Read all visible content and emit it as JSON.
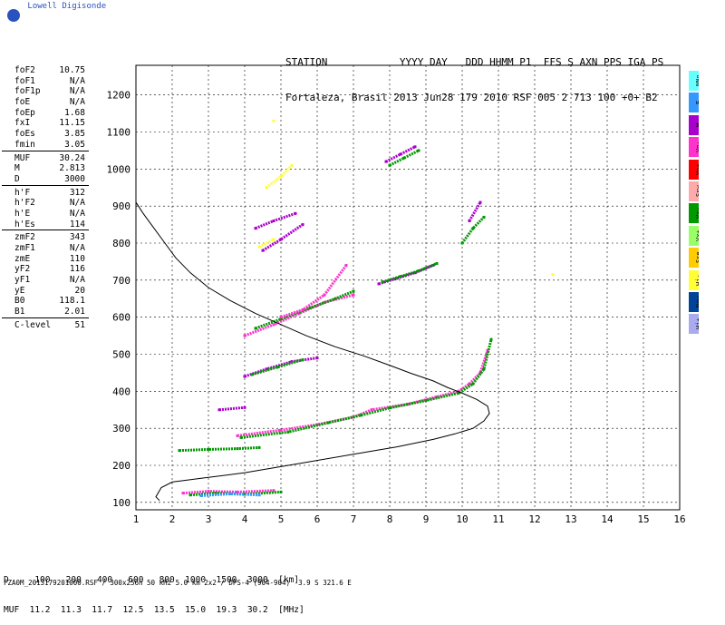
{
  "logo": {
    "text": "Lowell Digisonde"
  },
  "header": {
    "line1": "STATION            YYYY DAY   DDD HHMM P1  FFS S AXN PPS IGA PS",
    "line2": "Fortaleza, Brasil 2013 Jun28 179 2010 RSF 005 2 713 100 +0+ B2"
  },
  "params": [
    {
      "k": "foF2",
      "v": "10.75"
    },
    {
      "k": "foF1",
      "v": "N/A"
    },
    {
      "k": "foF1p",
      "v": "N/A"
    },
    {
      "k": "foE",
      "v": "N/A"
    },
    {
      "k": "foEp",
      "v": "1.68"
    },
    {
      "k": "fxI",
      "v": "11.15"
    },
    {
      "k": "foEs",
      "v": "3.85"
    },
    {
      "k": "fmin",
      "v": "3.05",
      "sep": true
    },
    {
      "k": "MUF",
      "v": "30.24"
    },
    {
      "k": "M",
      "v": "2.813"
    },
    {
      "k": "D",
      "v": "3000",
      "sep": true
    },
    {
      "k": "h'F",
      "v": "312"
    },
    {
      "k": "h'F2",
      "v": "N/A"
    },
    {
      "k": "h'E",
      "v": "N/A"
    },
    {
      "k": "h'Es",
      "v": "114",
      "sep": true
    },
    {
      "k": "zmF2",
      "v": "343"
    },
    {
      "k": "zmF1",
      "v": "N/A"
    },
    {
      "k": "zmE",
      "v": "110"
    },
    {
      "k": "yF2",
      "v": "116"
    },
    {
      "k": "yF1",
      "v": "N/A"
    },
    {
      "k": "yE",
      "v": "20"
    },
    {
      "k": "B0",
      "v": "118.1"
    },
    {
      "k": "B1",
      "v": "2.01",
      "sep": true
    },
    {
      "k": "C-level",
      "v": "51"
    }
  ],
  "legend": [
    {
      "label": "NNo",
      "color": "#66ffff"
    },
    {
      "label": "E",
      "color": "#3399ff"
    },
    {
      "label": "W",
      "color": "#aa00cc"
    },
    {
      "label": "Vo-",
      "color": "#ff33cc"
    },
    {
      "label": "Vo+",
      "color": "#ff0000"
    },
    {
      "label": "Ssw",
      "color": "#ffaaaa"
    },
    {
      "label": "Vx-",
      "color": "#009900"
    },
    {
      "label": "Vx+",
      "color": "#99ff66"
    },
    {
      "label": "Sse",
      "color": "#ffcc00"
    },
    {
      "label": "Hi-",
      "color": "#ffff33"
    },
    {
      "label": "Nnw",
      "color": "#004499"
    },
    {
      "label": "Hi+",
      "color": "#aaaaee"
    }
  ],
  "muf_table": {
    "line1": "D     100   200   400   600   800  1000  1500  3000  [km]",
    "line2": "MUF  11.2  11.3  11.7  12.5  13.5  15.0  19.3  30.2  [MHz]"
  },
  "footer": "FZA0M_2013179201000.RSF / 300x256h 50 kHz 5.0 km 2x2 / DPS-4 (904-904)  3.9 S 321.6 E",
  "chart_data": {
    "type": "scatter",
    "xlim": [
      1,
      16
    ],
    "ylim": [
      80,
      1280
    ],
    "xticks": [
      1,
      2,
      3,
      4,
      5,
      6,
      7,
      8,
      9,
      10,
      11,
      12,
      13,
      14,
      15,
      16
    ],
    "yticks": [
      100,
      200,
      300,
      400,
      500,
      600,
      700,
      800,
      900,
      1000,
      1100,
      1200
    ],
    "grid": true,
    "profile": {
      "x": [
        1.65,
        1.55,
        1.7,
        2.0,
        2.8,
        4.0,
        5.5,
        7.0,
        8.2,
        9.2,
        9.8,
        10.3,
        10.6,
        10.75,
        10.7,
        10.4,
        10.0,
        9.6,
        9.2,
        8.6,
        8.0,
        7.3,
        6.5,
        5.7,
        5.0,
        4.3,
        3.6,
        3.0,
        2.5,
        2.1,
        1.8,
        1.5,
        1.2,
        1.0
      ],
      "y": [
        105,
        115,
        140,
        155,
        165,
        180,
        205,
        230,
        250,
        270,
        285,
        300,
        320,
        340,
        360,
        378,
        395,
        410,
        428,
        448,
        470,
        495,
        520,
        550,
        580,
        610,
        645,
        680,
        720,
        760,
        800,
        840,
        880,
        910
      ]
    },
    "traces": [
      {
        "color": "#ff33cc",
        "x": [
          3.8,
          5.0,
          6.0,
          7.0,
          7.5,
          8.5,
          9.3,
          9.9,
          10.2,
          10.5,
          10.7
        ],
        "y": [
          280,
          295,
          310,
          330,
          350,
          365,
          385,
          400,
          420,
          450,
          510
        ]
      },
      {
        "color": "#009900",
        "x": [
          3.9,
          5.2,
          6.3,
          7.2,
          8.0,
          9.0,
          9.9,
          10.3,
          10.6,
          10.8
        ],
        "y": [
          275,
          290,
          315,
          335,
          355,
          375,
          395,
          420,
          460,
          540
        ]
      },
      {
        "color": "#ff33cc",
        "x": [
          4.0,
          4.8,
          5.5,
          6.2,
          7.0
        ],
        "y": [
          550,
          580,
          610,
          640,
          660
        ]
      },
      {
        "color": "#009900",
        "x": [
          4.3,
          5.0,
          5.8,
          6.5,
          7.0
        ],
        "y": [
          570,
          595,
          625,
          650,
          670
        ]
      },
      {
        "color": "#aa00cc",
        "x": [
          7.7,
          8.2,
          8.7,
          9.2
        ],
        "y": [
          690,
          705,
          720,
          740
        ]
      },
      {
        "color": "#009900",
        "x": [
          7.8,
          8.3,
          8.8,
          9.3
        ],
        "y": [
          695,
          710,
          725,
          745
        ]
      },
      {
        "color": "#aa00cc",
        "x": [
          4.0,
          4.6,
          5.3,
          6.0
        ],
        "y": [
          440,
          460,
          480,
          490
        ]
      },
      {
        "color": "#009900",
        "x": [
          4.2,
          4.9,
          5.6
        ],
        "y": [
          445,
          465,
          485
        ]
      },
      {
        "color": "#ff33cc",
        "x": [
          5.0,
          5.6,
          6.2,
          6.8
        ],
        "y": [
          600,
          620,
          660,
          740
        ]
      },
      {
        "color": "#aa00cc",
        "x": [
          4.3,
          4.8,
          5.4
        ],
        "y": [
          840,
          860,
          880
        ]
      },
      {
        "color": "#aa00cc",
        "x": [
          4.5,
          5.0,
          5.6
        ],
        "y": [
          780,
          810,
          850
        ]
      },
      {
        "color": "#ffff33",
        "x": [
          4.4,
          4.8
        ],
        "y": [
          790,
          810
        ]
      },
      {
        "color": "#ffff33",
        "x": [
          4.6,
          5.0,
          5.3
        ],
        "y": [
          950,
          980,
          1010
        ]
      },
      {
        "color": "#009900",
        "x": [
          10.0,
          10.3,
          10.6
        ],
        "y": [
          800,
          840,
          870
        ]
      },
      {
        "color": "#aa00cc",
        "x": [
          10.2,
          10.5
        ],
        "y": [
          860,
          910
        ]
      },
      {
        "color": "#009900",
        "x": [
          8.0,
          8.4,
          8.8
        ],
        "y": [
          1010,
          1030,
          1050
        ]
      },
      {
        "color": "#aa00cc",
        "x": [
          7.9,
          8.3,
          8.7
        ],
        "y": [
          1020,
          1040,
          1060
        ]
      },
      {
        "color": "#ff33cc",
        "x": [
          2.3,
          3.0,
          3.8,
          4.8
        ],
        "y": [
          125,
          130,
          128,
          132
        ]
      },
      {
        "color": "#009900",
        "x": [
          2.5,
          3.2,
          4.0,
          5.0
        ],
        "y": [
          120,
          125,
          122,
          128
        ]
      },
      {
        "color": "#3399ff",
        "x": [
          2.8,
          3.6,
          4.4
        ],
        "y": [
          118,
          123,
          120
        ]
      },
      {
        "color": "#009900",
        "x": [
          2.2,
          3.0,
          3.8,
          4.4
        ],
        "y": [
          240,
          243,
          245,
          248
        ]
      },
      {
        "color": "#aa00cc",
        "x": [
          3.3,
          4.0
        ],
        "y": [
          350,
          356
        ]
      },
      {
        "color": "#ffff33",
        "x": [
          4.8
        ],
        "y": [
          1130
        ]
      },
      {
        "color": "#ffff33",
        "x": [
          12.5
        ],
        "y": [
          715
        ]
      }
    ]
  }
}
